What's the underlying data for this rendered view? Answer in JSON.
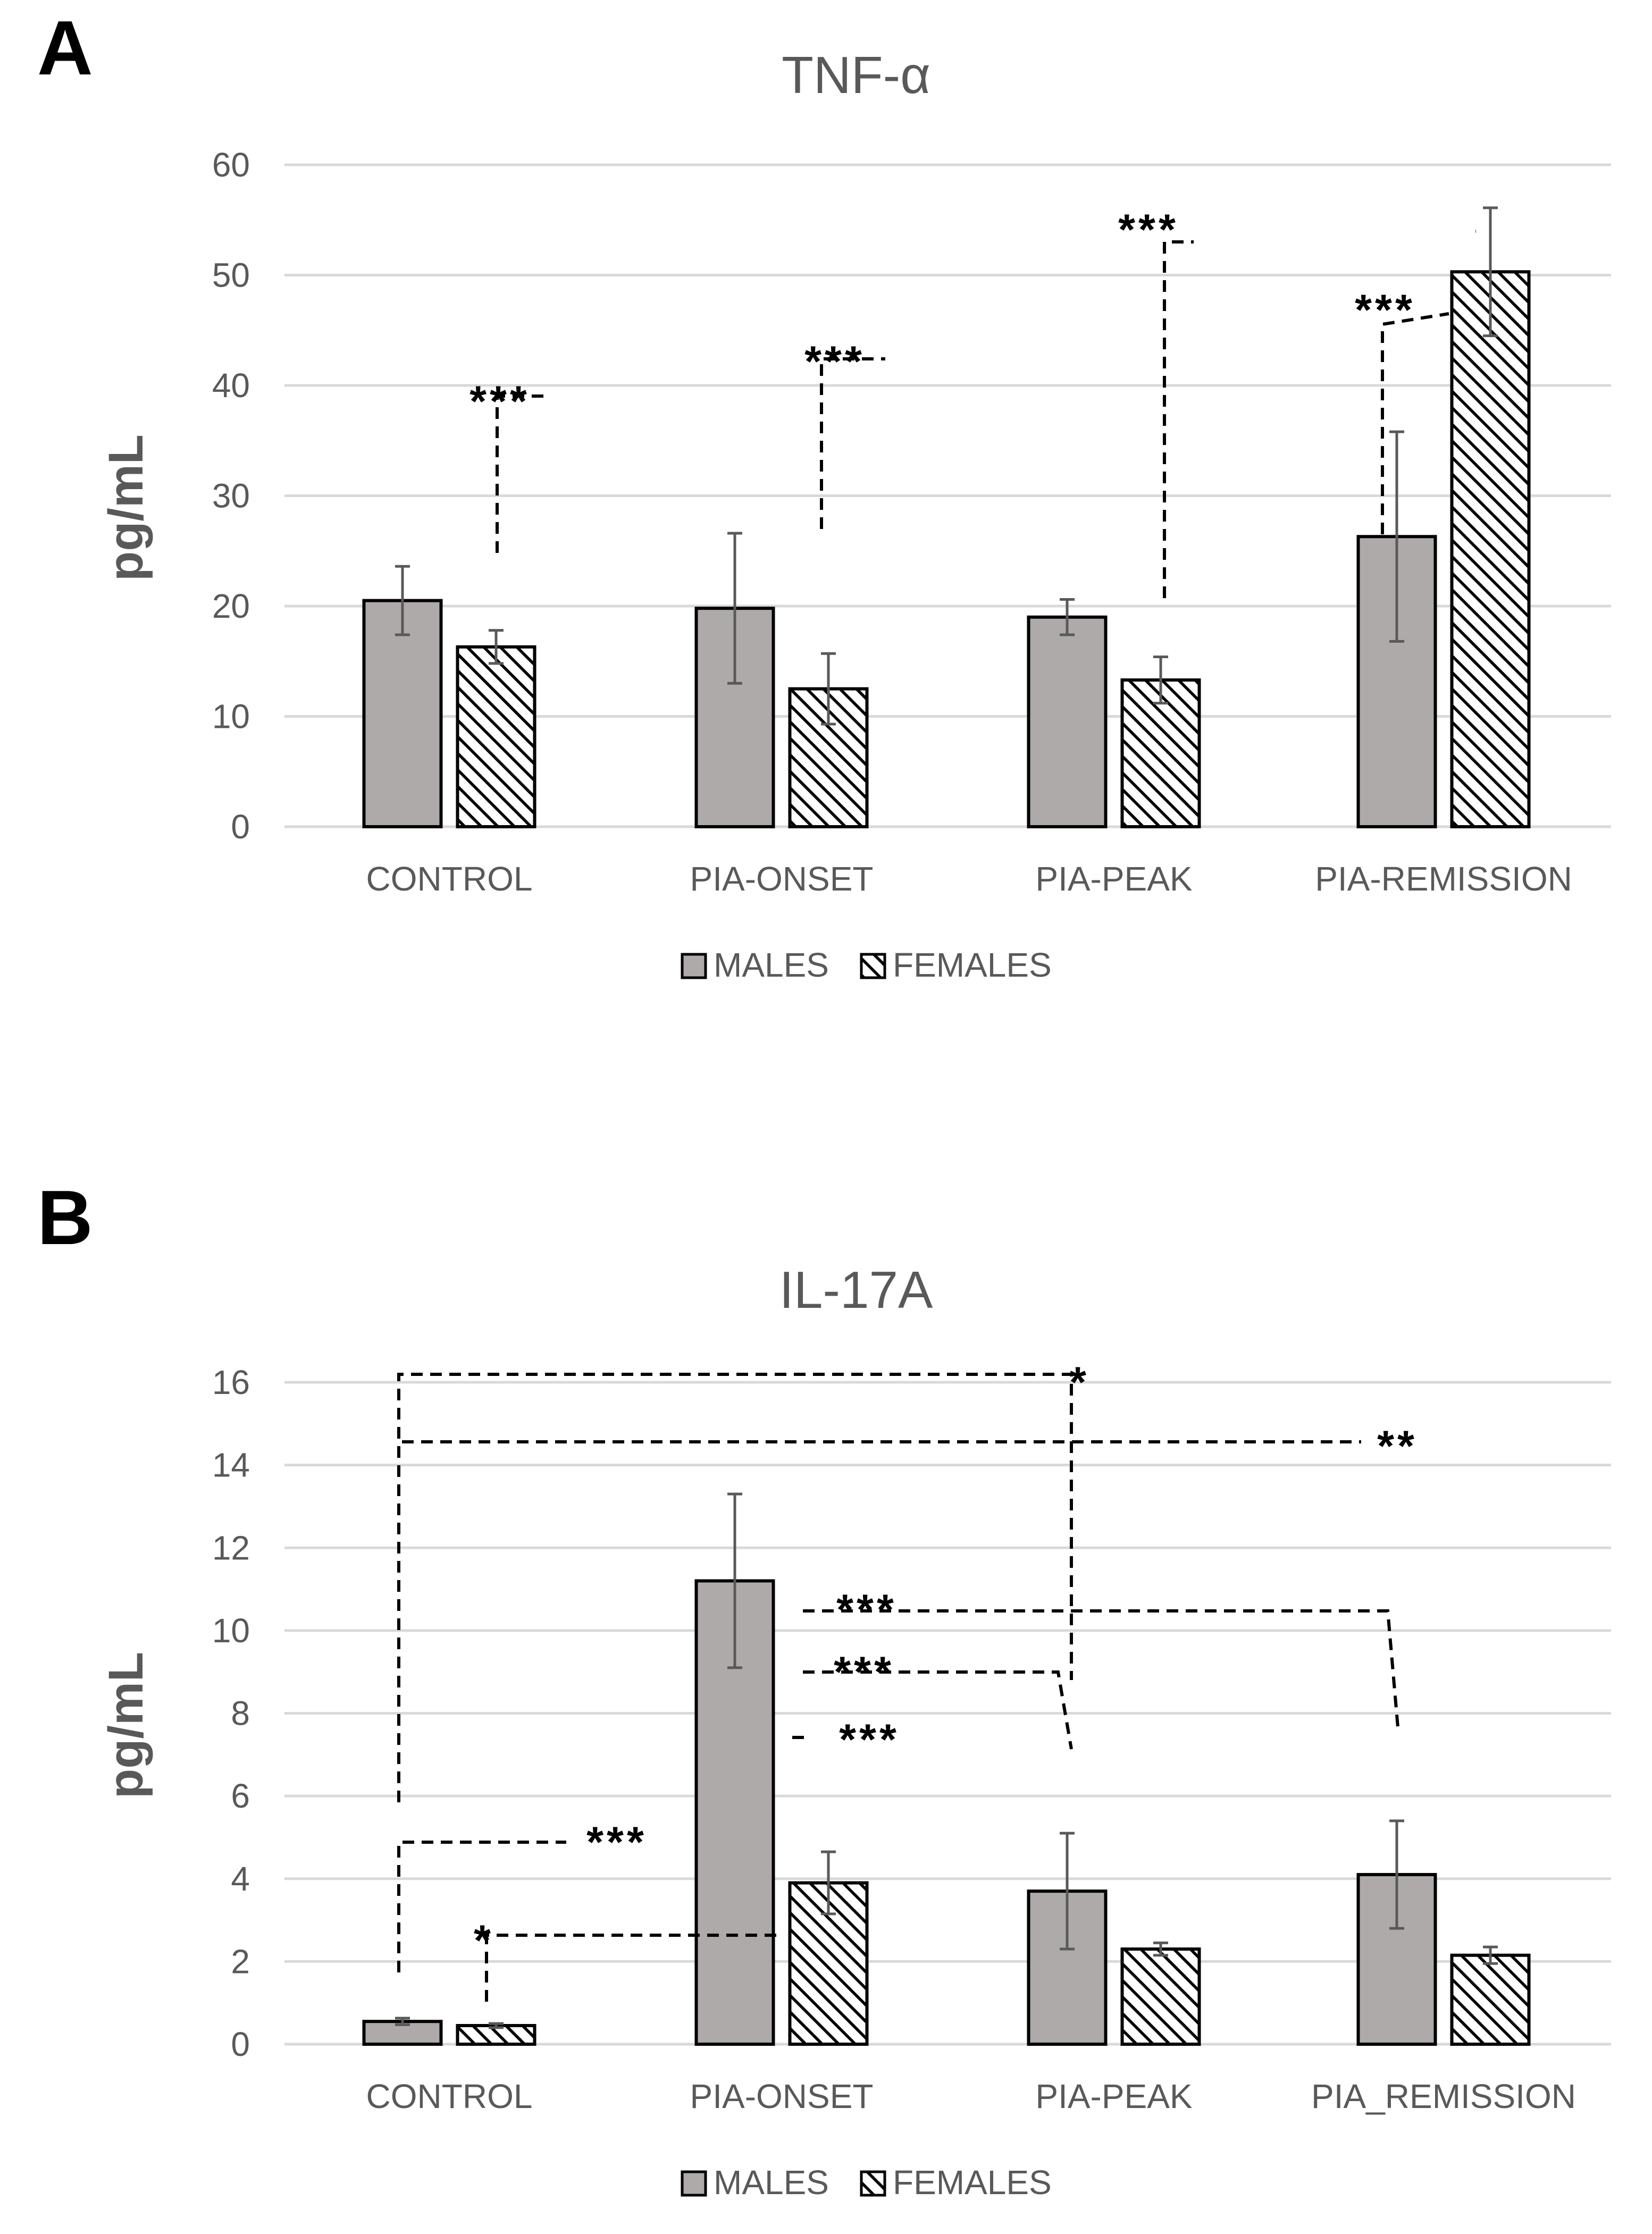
{
  "colors": {
    "males": "#aeaaaa",
    "bar_outline": "#000000",
    "grid": "#d9d9d9",
    "text": "#595959"
  },
  "chart_data": [
    {
      "panel": "A",
      "type": "bar",
      "title": "TNF-α",
      "ylabel": "pg/mL",
      "xlabel": "",
      "ylim": [
        0,
        60
      ],
      "yticks": [
        0,
        10,
        20,
        30,
        40,
        50,
        60
      ],
      "categories": [
        "CONTROL",
        "PIA-ONSET",
        "PIA-PEAK",
        "PIA-REMISSION"
      ],
      "grid": true,
      "legend": "bottom-center",
      "series": [
        {
          "name": "MALES",
          "pattern": "solid",
          "values": [
            20.5,
            19.8,
            19.0,
            26.3
          ],
          "errors": [
            3.1,
            6.8,
            1.6,
            9.5
          ]
        },
        {
          "name": "FEMALES",
          "pattern": "hatched",
          "values": [
            16.3,
            12.5,
            13.3,
            50.3
          ],
          "errors": [
            1.5,
            3.2,
            2.1,
            5.8
          ]
        }
      ],
      "significance": [
        {
          "label": "***",
          "from": [
            0,
            1
          ],
          "to": [
            3,
            1
          ]
        },
        {
          "label": "***",
          "from": [
            1,
            1
          ],
          "to": [
            3,
            1
          ]
        },
        {
          "label": "***",
          "from": [
            2,
            1
          ],
          "to": [
            3,
            1
          ]
        },
        {
          "label": "***",
          "from": [
            3,
            0
          ],
          "to": [
            3,
            1
          ]
        }
      ]
    },
    {
      "panel": "B",
      "type": "bar",
      "title": "IL-17A",
      "ylabel": "pg/mL",
      "xlabel": "",
      "ylim": [
        0,
        16
      ],
      "yticks": [
        0,
        2,
        4,
        6,
        8,
        10,
        12,
        14,
        16
      ],
      "categories": [
        "CONTROL",
        "PIA-ONSET",
        "PIA-PEAK",
        "PIA_REMISSION"
      ],
      "grid": true,
      "legend": "bottom-center",
      "series": [
        {
          "name": "MALES",
          "pattern": "solid",
          "values": [
            0.55,
            11.2,
            3.7,
            4.1
          ],
          "errors": [
            0.08,
            2.1,
            1.4,
            1.3
          ]
        },
        {
          "name": "FEMALES",
          "pattern": "hatched",
          "values": [
            0.45,
            3.9,
            2.3,
            2.15
          ],
          "errors": [
            0.05,
            0.75,
            0.15,
            0.2
          ]
        }
      ],
      "significance": [
        {
          "label": "*",
          "from": [
            0,
            0
          ],
          "to": [
            2,
            0
          ]
        },
        {
          "label": "**",
          "from": [
            0,
            0
          ],
          "to": [
            3,
            0
          ]
        },
        {
          "label": "***",
          "from": [
            0,
            0
          ],
          "to": [
            1,
            0
          ]
        },
        {
          "label": "*",
          "from": [
            0,
            1
          ],
          "to": [
            1,
            1
          ]
        },
        {
          "label": "***",
          "from": [
            1,
            0
          ],
          "to": [
            3,
            0
          ]
        },
        {
          "label": "***",
          "from": [
            1,
            0
          ],
          "to": [
            2,
            0
          ]
        },
        {
          "label": "***",
          "from": [
            1,
            0
          ],
          "to": [
            1,
            1
          ]
        }
      ]
    }
  ]
}
